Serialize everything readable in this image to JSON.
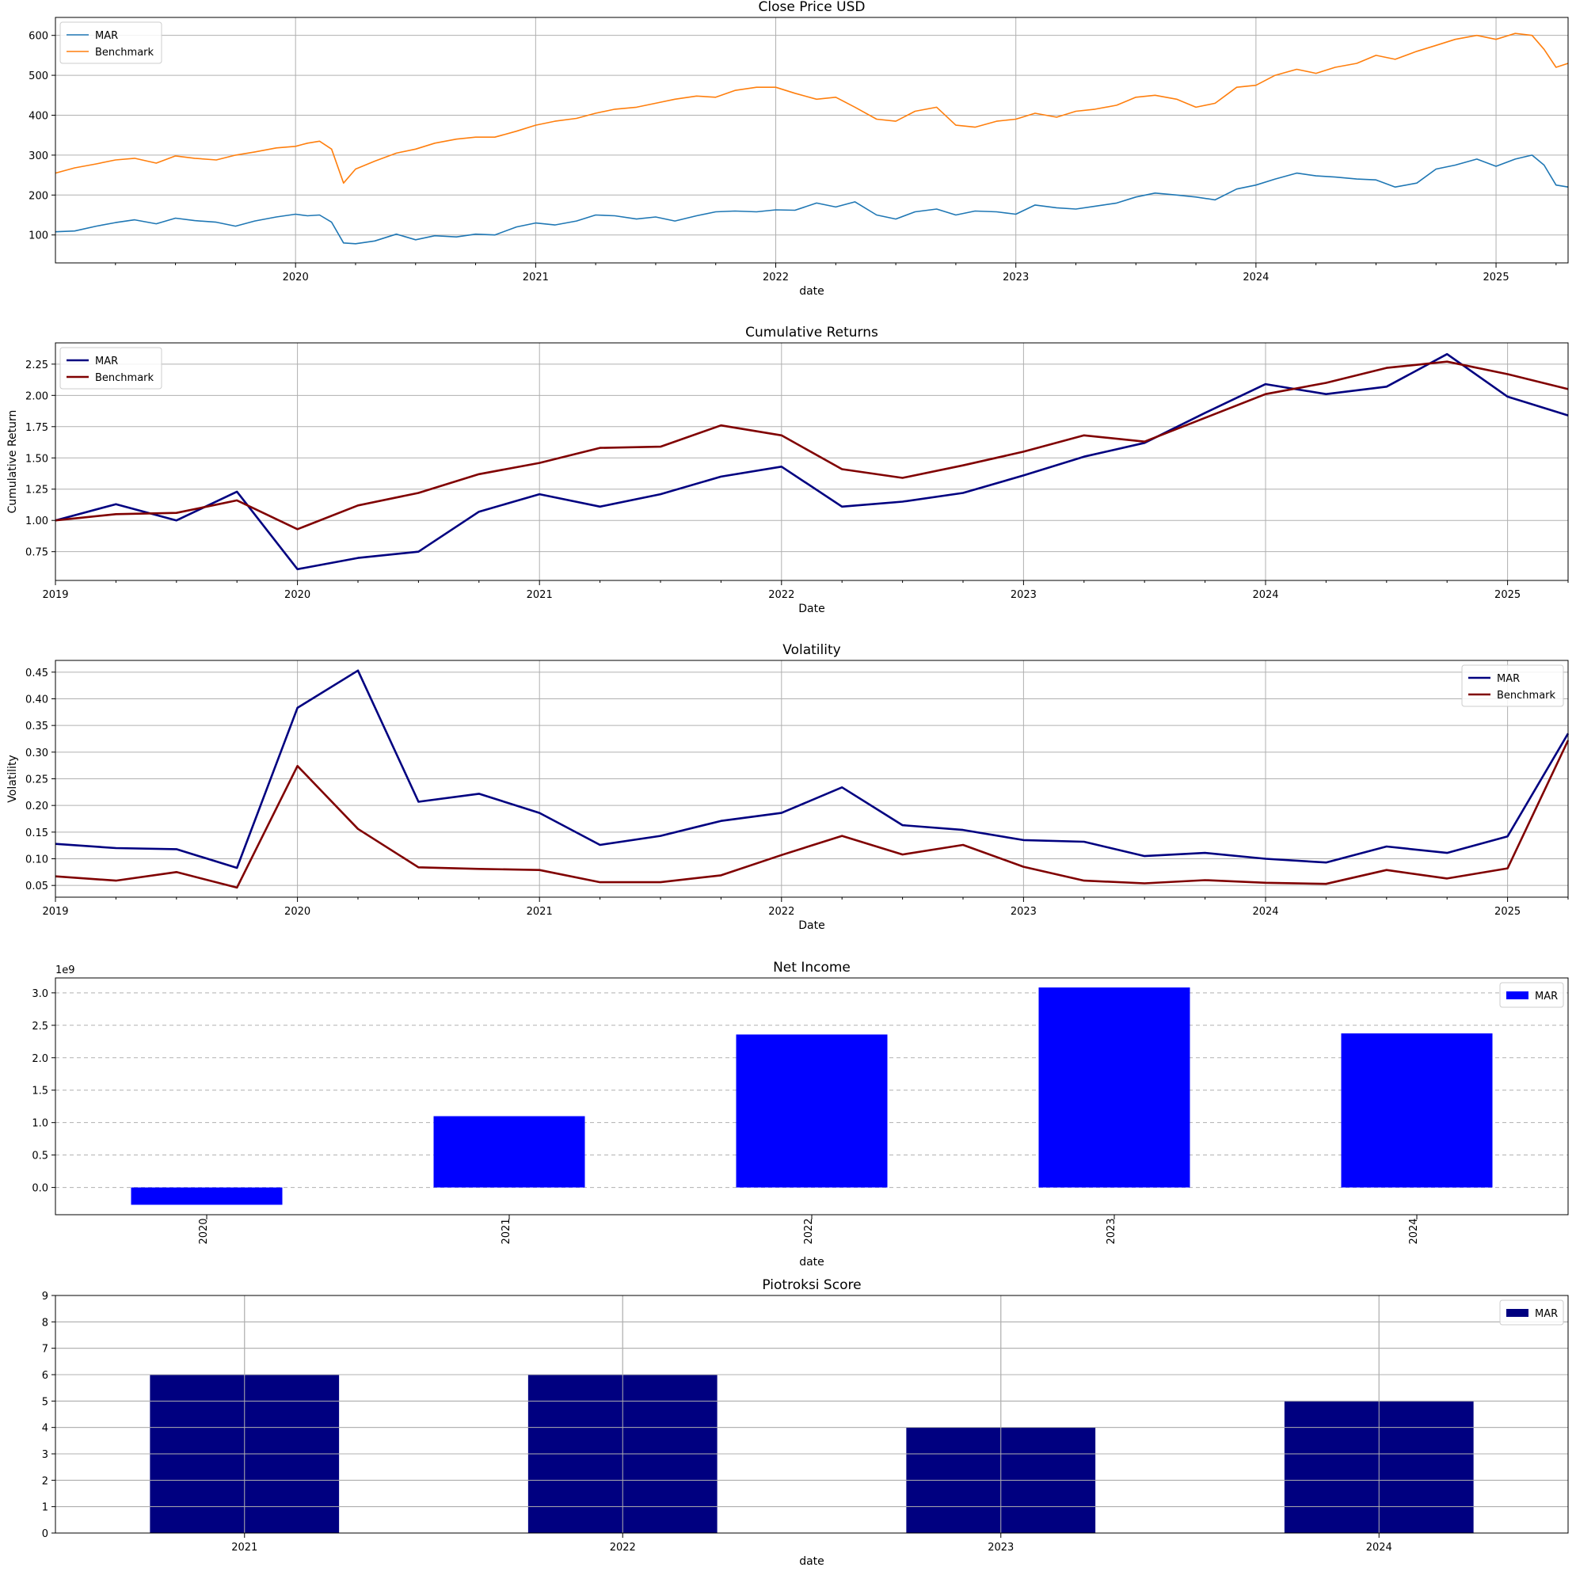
{
  "chart_data": [
    {
      "type": "line",
      "title": "Close Price USD",
      "xlabel": "date",
      "ylabel": "",
      "ylim": [
        30,
        645
      ],
      "yticks": [
        100,
        200,
        300,
        400,
        500,
        600
      ],
      "xlim": [
        2019.0,
        2025.3
      ],
      "xticks": [
        2020,
        2021,
        2022,
        2023,
        2024,
        2025
      ],
      "xtick_labels": [
        "2020",
        "2021",
        "2022",
        "2023",
        "2024",
        "2025"
      ],
      "minor_xticks": true,
      "grid": "both",
      "legend_position": "top-left",
      "series": [
        {
          "name": "MAR",
          "color": "#1f77b4",
          "x": [
            2019.0,
            2019.08,
            2019.17,
            2019.25,
            2019.33,
            2019.42,
            2019.5,
            2019.58,
            2019.67,
            2019.75,
            2019.83,
            2019.92,
            2020.0,
            2020.05,
            2020.1,
            2020.15,
            2020.2,
            2020.25,
            2020.33,
            2020.42,
            2020.5,
            2020.58,
            2020.67,
            2020.75,
            2020.83,
            2020.92,
            2021.0,
            2021.08,
            2021.17,
            2021.25,
            2021.33,
            2021.42,
            2021.5,
            2021.58,
            2021.67,
            2021.75,
            2021.83,
            2021.92,
            2022.0,
            2022.08,
            2022.17,
            2022.25,
            2022.33,
            2022.42,
            2022.5,
            2022.58,
            2022.67,
            2022.75,
            2022.83,
            2022.92,
            2023.0,
            2023.08,
            2023.17,
            2023.25,
            2023.33,
            2023.42,
            2023.5,
            2023.58,
            2023.67,
            2023.75,
            2023.83,
            2023.92,
            2024.0,
            2024.08,
            2024.17,
            2024.25,
            2024.33,
            2024.42,
            2024.5,
            2024.58,
            2024.67,
            2024.75,
            2024.83,
            2024.92,
            2025.0,
            2025.08,
            2025.15,
            2025.2,
            2025.25,
            2025.3
          ],
          "values": [
            108,
            110,
            122,
            131,
            138,
            128,
            142,
            136,
            132,
            122,
            135,
            145,
            152,
            148,
            150,
            132,
            80,
            78,
            85,
            102,
            88,
            98,
            95,
            102,
            100,
            120,
            130,
            125,
            135,
            150,
            148,
            140,
            145,
            135,
            148,
            158,
            160,
            158,
            163,
            162,
            180,
            170,
            183,
            150,
            140,
            158,
            165,
            150,
            160,
            158,
            152,
            175,
            168,
            165,
            172,
            180,
            195,
            205,
            200,
            195,
            188,
            215,
            225,
            240,
            255,
            248,
            245,
            240,
            238,
            220,
            230,
            265,
            275,
            290,
            272,
            290,
            300,
            275,
            225,
            220
          ]
        },
        {
          "name": "Benchmark",
          "color": "#ff7f0e",
          "x": [
            2019.0,
            2019.08,
            2019.17,
            2019.25,
            2019.33,
            2019.42,
            2019.5,
            2019.58,
            2019.67,
            2019.75,
            2019.83,
            2019.92,
            2020.0,
            2020.05,
            2020.1,
            2020.15,
            2020.2,
            2020.25,
            2020.33,
            2020.42,
            2020.5,
            2020.58,
            2020.67,
            2020.75,
            2020.83,
            2020.92,
            2021.0,
            2021.08,
            2021.17,
            2021.25,
            2021.33,
            2021.42,
            2021.5,
            2021.58,
            2021.67,
            2021.75,
            2021.83,
            2021.92,
            2022.0,
            2022.08,
            2022.17,
            2022.25,
            2022.33,
            2022.42,
            2022.5,
            2022.58,
            2022.67,
            2022.75,
            2022.83,
            2022.92,
            2023.0,
            2023.08,
            2023.17,
            2023.25,
            2023.33,
            2023.42,
            2023.5,
            2023.58,
            2023.67,
            2023.75,
            2023.83,
            2023.92,
            2024.0,
            2024.08,
            2024.17,
            2024.25,
            2024.33,
            2024.42,
            2024.5,
            2024.58,
            2024.67,
            2024.75,
            2024.83,
            2024.92,
            2025.0,
            2025.08,
            2025.15,
            2025.2,
            2025.25,
            2025.3
          ],
          "values": [
            255,
            268,
            278,
            288,
            292,
            280,
            298,
            292,
            288,
            300,
            308,
            318,
            322,
            330,
            335,
            315,
            230,
            265,
            285,
            305,
            315,
            330,
            340,
            345,
            345,
            360,
            375,
            385,
            392,
            405,
            415,
            420,
            430,
            440,
            448,
            445,
            462,
            470,
            470,
            455,
            440,
            445,
            420,
            390,
            385,
            410,
            420,
            375,
            370,
            385,
            390,
            405,
            395,
            410,
            415,
            425,
            445,
            450,
            440,
            420,
            430,
            470,
            475,
            500,
            515,
            505,
            520,
            530,
            550,
            540,
            560,
            575,
            590,
            600,
            590,
            605,
            600,
            565,
            520,
            530
          ]
        }
      ]
    },
    {
      "type": "line",
      "title": "Cumulative Returns",
      "xlabel": "Date",
      "ylabel": "Cumulative Return",
      "ylim": [
        0.52,
        2.42
      ],
      "yticks": [
        0.75,
        1.0,
        1.25,
        1.5,
        1.75,
        2.0,
        2.25
      ],
      "ytick_labels": [
        "0.75",
        "1.00",
        "1.25",
        "1.50",
        "1.75",
        "2.00",
        "2.25"
      ],
      "xlim": [
        2019.0,
        2025.25
      ],
      "xticks": [
        2019,
        2020,
        2021,
        2022,
        2023,
        2024,
        2025
      ],
      "xtick_labels": [
        "2019",
        "2020",
        "2021",
        "2022",
        "2023",
        "2024",
        "2025"
      ],
      "minor_xticks": true,
      "grid": "both",
      "legend_position": "top-left",
      "series": [
        {
          "name": "MAR",
          "color": "#000080",
          "x": [
            2019.0,
            2019.25,
            2019.5,
            2019.75,
            2020.0,
            2020.25,
            2020.5,
            2020.75,
            2021.0,
            2021.25,
            2021.5,
            2021.75,
            2022.0,
            2022.25,
            2022.5,
            2022.75,
            2023.0,
            2023.25,
            2023.5,
            2023.75,
            2024.0,
            2024.25,
            2024.5,
            2024.75,
            2025.0,
            2025.25
          ],
          "values": [
            1.0,
            1.13,
            1.0,
            1.23,
            0.61,
            0.7,
            0.75,
            1.07,
            1.21,
            1.11,
            1.21,
            1.35,
            1.43,
            1.11,
            1.15,
            1.22,
            1.36,
            1.51,
            1.62,
            1.86,
            2.09,
            2.01,
            2.07,
            2.33,
            1.99,
            1.84
          ]
        },
        {
          "name": "Benchmark",
          "color": "#800000",
          "x": [
            2019.0,
            2019.25,
            2019.5,
            2019.75,
            2020.0,
            2020.25,
            2020.5,
            2020.75,
            2021.0,
            2021.25,
            2021.5,
            2021.75,
            2022.0,
            2022.25,
            2022.5,
            2022.75,
            2023.0,
            2023.25,
            2023.5,
            2023.75,
            2024.0,
            2024.25,
            2024.5,
            2024.75,
            2025.0,
            2025.25
          ],
          "values": [
            1.0,
            1.05,
            1.06,
            1.16,
            0.93,
            1.12,
            1.22,
            1.37,
            1.46,
            1.58,
            1.59,
            1.76,
            1.68,
            1.41,
            1.34,
            1.44,
            1.55,
            1.68,
            1.63,
            1.82,
            2.01,
            2.1,
            2.22,
            2.27,
            2.17,
            2.05
          ]
        }
      ]
    },
    {
      "type": "line",
      "title": "Volatility",
      "xlabel": "Date",
      "ylabel": "Volatility",
      "ylim": [
        0.028,
        0.472
      ],
      "yticks": [
        0.05,
        0.1,
        0.15,
        0.2,
        0.25,
        0.3,
        0.35,
        0.4,
        0.45
      ],
      "ytick_labels": [
        "0.05",
        "0.10",
        "0.15",
        "0.20",
        "0.25",
        "0.30",
        "0.35",
        "0.40",
        "0.45"
      ],
      "xlim": [
        2019.0,
        2025.25
      ],
      "xticks": [
        2019,
        2020,
        2021,
        2022,
        2023,
        2024,
        2025
      ],
      "xtick_labels": [
        "2019",
        "2020",
        "2021",
        "2022",
        "2023",
        "2024",
        "2025"
      ],
      "minor_xticks": true,
      "grid": "both",
      "legend_position": "top-right",
      "series": [
        {
          "name": "MAR",
          "color": "#000080",
          "x": [
            2019.0,
            2019.25,
            2019.5,
            2019.75,
            2020.0,
            2020.25,
            2020.5,
            2020.75,
            2021.0,
            2021.25,
            2021.5,
            2021.75,
            2022.0,
            2022.25,
            2022.5,
            2022.75,
            2023.0,
            2023.25,
            2023.5,
            2023.75,
            2024.0,
            2024.25,
            2024.5,
            2024.75,
            2025.0,
            2025.25
          ],
          "values": [
            0.128,
            0.12,
            0.118,
            0.083,
            0.383,
            0.453,
            0.207,
            0.222,
            0.186,
            0.126,
            0.143,
            0.171,
            0.186,
            0.234,
            0.163,
            0.154,
            0.135,
            0.132,
            0.105,
            0.111,
            0.1,
            0.093,
            0.123,
            0.111,
            0.142,
            0.335
          ]
        },
        {
          "name": "Benchmark",
          "color": "#800000",
          "x": [
            2019.0,
            2019.25,
            2019.5,
            2019.75,
            2020.0,
            2020.25,
            2020.5,
            2020.75,
            2021.0,
            2021.25,
            2021.5,
            2021.75,
            2022.0,
            2022.25,
            2022.5,
            2022.75,
            2023.0,
            2023.25,
            2023.5,
            2023.75,
            2024.0,
            2024.25,
            2024.5,
            2024.75,
            2025.0,
            2025.25
          ],
          "values": [
            0.067,
            0.059,
            0.075,
            0.046,
            0.274,
            0.156,
            0.084,
            0.081,
            0.079,
            0.056,
            0.056,
            0.069,
            0.107,
            0.143,
            0.108,
            0.126,
            0.085,
            0.059,
            0.054,
            0.06,
            0.055,
            0.053,
            0.079,
            0.063,
            0.082,
            0.322
          ]
        }
      ]
    },
    {
      "type": "bar",
      "title": "Net Income",
      "xlabel": "date",
      "ylabel": "",
      "offset_label": "1e9",
      "ylim": [
        -0.42,
        3.23
      ],
      "yticks": [
        0.0,
        0.5,
        1.0,
        1.5,
        2.0,
        2.5,
        3.0
      ],
      "ytick_labels": [
        "0.0",
        "0.5",
        "1.0",
        "1.5",
        "2.0",
        "2.5",
        "3.0"
      ],
      "categories": [
        "2020",
        "2021",
        "2022",
        "2023",
        "2024"
      ],
      "xtick_rotation": 90,
      "grid": "y-dashed",
      "legend_position": "top-right",
      "series": [
        {
          "name": "MAR",
          "color": "#0000ff",
          "values": [
            -0.267,
            1.099,
            2.358,
            3.083,
            2.375
          ]
        }
      ]
    },
    {
      "type": "bar",
      "title": "Piotroksi Score",
      "xlabel": "date",
      "ylabel": "",
      "ylim": [
        0,
        9
      ],
      "yticks": [
        0,
        1,
        2,
        3,
        4,
        5,
        6,
        7,
        8,
        9
      ],
      "ytick_labels": [
        "0",
        "1",
        "2",
        "3",
        "4",
        "5",
        "6",
        "7",
        "8",
        "9"
      ],
      "categories": [
        "2021",
        "2022",
        "2023",
        "2024"
      ],
      "xtick_rotation": 0,
      "grid": "both",
      "legend_position": "top-right",
      "series": [
        {
          "name": "MAR",
          "color": "#000080",
          "values": [
            6,
            6,
            4,
            5
          ]
        }
      ]
    }
  ]
}
